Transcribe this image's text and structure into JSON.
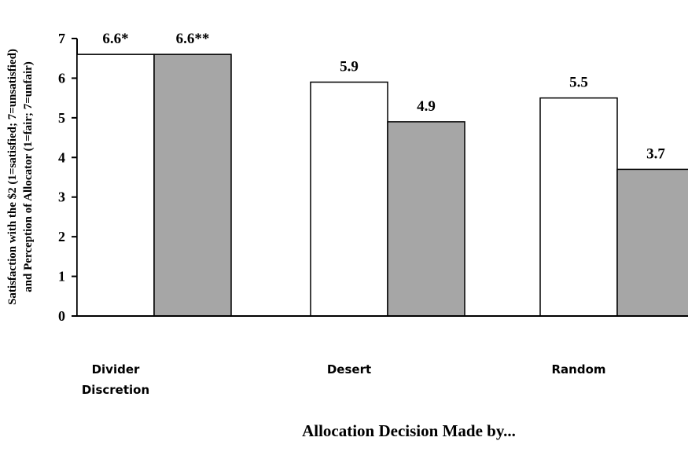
{
  "chart_data": {
    "type": "bar",
    "categories": [
      "Divider Discretion",
      "Desert",
      "Random"
    ],
    "category_lines": [
      [
        "Divider",
        "Discretion"
      ],
      [
        "Desert"
      ],
      [
        "Random"
      ]
    ],
    "series": [
      {
        "values": [
          6.6,
          5.9,
          5.5
        ],
        "color": "#ffffff"
      },
      {
        "values": [
          6.6,
          4.9,
          3.7
        ],
        "color": "#a6a6a6"
      }
    ],
    "data_labels": [
      [
        "6.6*",
        "5.9",
        "5.5"
      ],
      [
        "6.6**",
        "4.9",
        "3.7"
      ]
    ],
    "ylim": [
      0,
      7
    ],
    "yticks": [
      0,
      1,
      2,
      3,
      4,
      5,
      6,
      7
    ],
    "xlabel": "Allocation Decision Made by...",
    "ylabel_lines": [
      "Satisfaction with the $2 (1=satisfied; 7=unsatisfied)",
      "and Perception of Allocator (1=fair; 7=unfair)"
    ],
    "grid": false
  }
}
